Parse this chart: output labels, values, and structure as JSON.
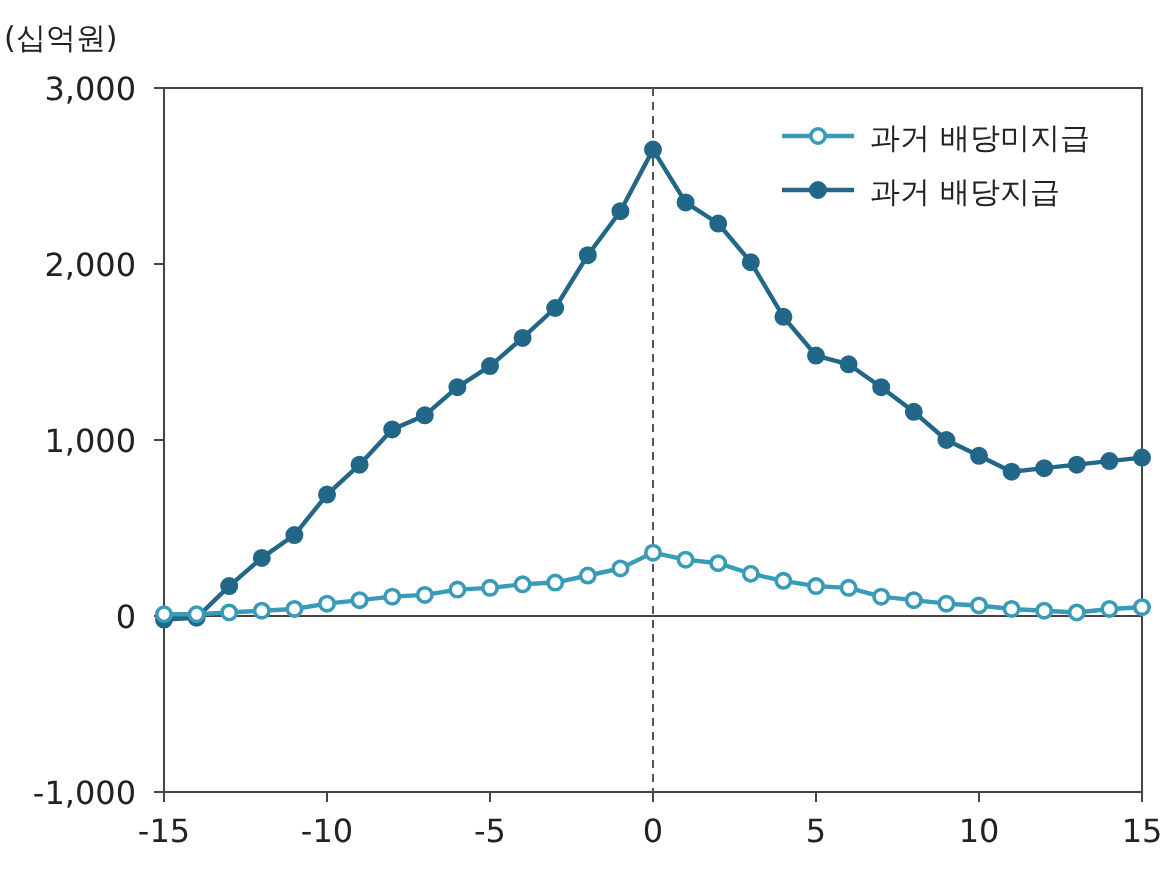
{
  "chart_data": {
    "type": "line",
    "ylabel": "(십억원)",
    "x": [
      -15,
      -14,
      -13,
      -12,
      -11,
      -10,
      -9,
      -8,
      -7,
      -6,
      -5,
      -4,
      -3,
      -2,
      -1,
      0,
      1,
      2,
      3,
      4,
      5,
      6,
      7,
      8,
      9,
      10,
      11,
      12,
      13,
      14,
      15
    ],
    "series": [
      {
        "name": "과거 배당미지급",
        "color": "#3a9bb8",
        "marker": "circle",
        "values": [
          10,
          10,
          20,
          30,
          40,
          70,
          90,
          110,
          120,
          150,
          160,
          180,
          190,
          230,
          270,
          360,
          320,
          300,
          240,
          200,
          170,
          160,
          110,
          90,
          70,
          60,
          40,
          30,
          20,
          40,
          50
        ]
      },
      {
        "name": "과거 배당지급",
        "color": "#226688",
        "marker": "circle",
        "values": [
          -20,
          -10,
          170,
          330,
          460,
          690,
          860,
          1060,
          1140,
          1300,
          1420,
          1580,
          1750,
          2050,
          2300,
          2650,
          2350,
          2230,
          2010,
          1700,
          1480,
          1430,
          1300,
          1160,
          1000,
          910,
          820,
          840,
          860,
          880,
          900
        ]
      }
    ],
    "xlim": [
      -15,
      15
    ],
    "xticks": [
      -15,
      -10,
      -5,
      0,
      5,
      10,
      15
    ],
    "ylim": [
      -1000,
      3000
    ],
    "yticks": [
      {
        "value": -1000,
        "label": "-1,000"
      },
      0,
      {
        "value": 1000,
        "label": "1,000"
      },
      {
        "value": 2000,
        "label": "2,000"
      },
      {
        "value": 3000,
        "label": "3,000"
      }
    ],
    "ref_lines": [
      {
        "axis": "x",
        "value": 0,
        "color": "#555555",
        "line_style": "dashed"
      }
    ],
    "grid": false,
    "legend": "top right"
  }
}
